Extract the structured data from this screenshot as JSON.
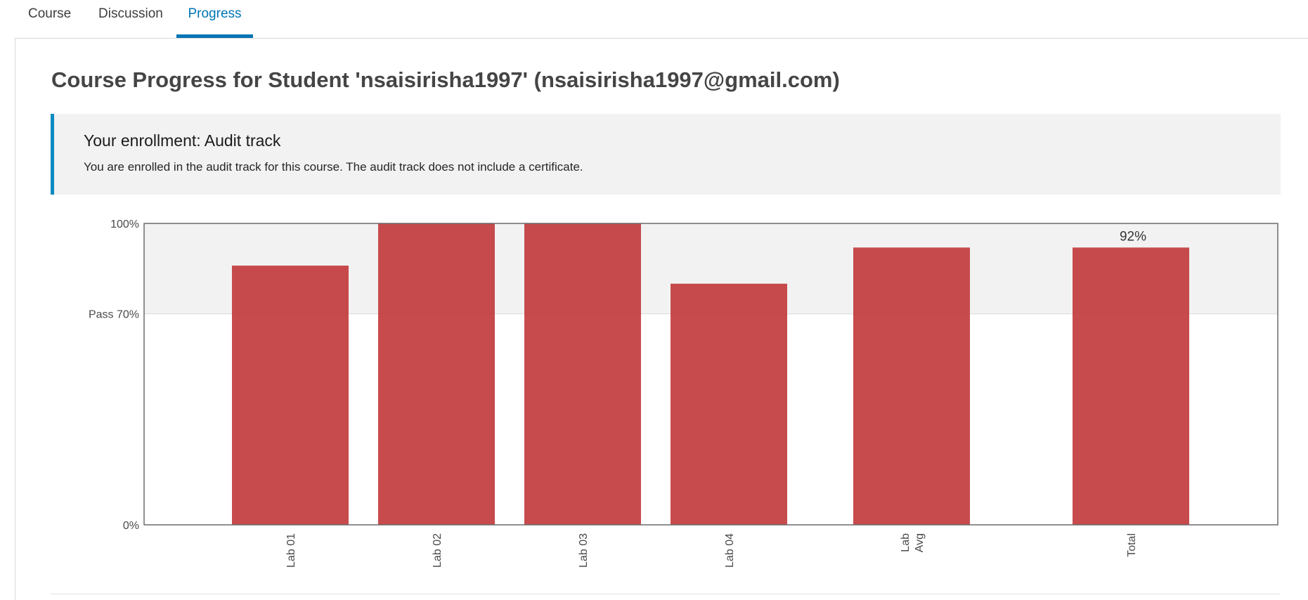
{
  "tabs": {
    "course": "Course",
    "discussion": "Discussion",
    "progress": "Progress",
    "active": "progress"
  },
  "page": {
    "title": "Course Progress for Student 'nsaisirisha1997' (nsaisirisha1997@gmail.com)"
  },
  "enrollment": {
    "title": "Your enrollment: Audit track",
    "text": "You are enrolled in the audit track for this course. The audit track does not include a certificate."
  },
  "colors": {
    "accent": "#0075b4",
    "bar": "#c23c3e",
    "pass_band": "#f2f2f2"
  },
  "chart_data": {
    "type": "bar",
    "categories": [
      "Lab 01",
      "Lab 02",
      "Lab 03",
      "Lab 04",
      "Lab Avg",
      "Total"
    ],
    "values": [
      86,
      100,
      100,
      80,
      92,
      92
    ],
    "ylim": [
      0,
      100
    ],
    "y_ticks": [
      {
        "value": 100,
        "label": "100%"
      },
      {
        "value": 70,
        "label": "Pass 70%"
      },
      {
        "value": 0,
        "label": "0%"
      }
    ],
    "data_labels": [
      {
        "category": "Total",
        "text": "92%"
      }
    ],
    "pass_threshold": 70,
    "grid": false,
    "legend": "none"
  }
}
